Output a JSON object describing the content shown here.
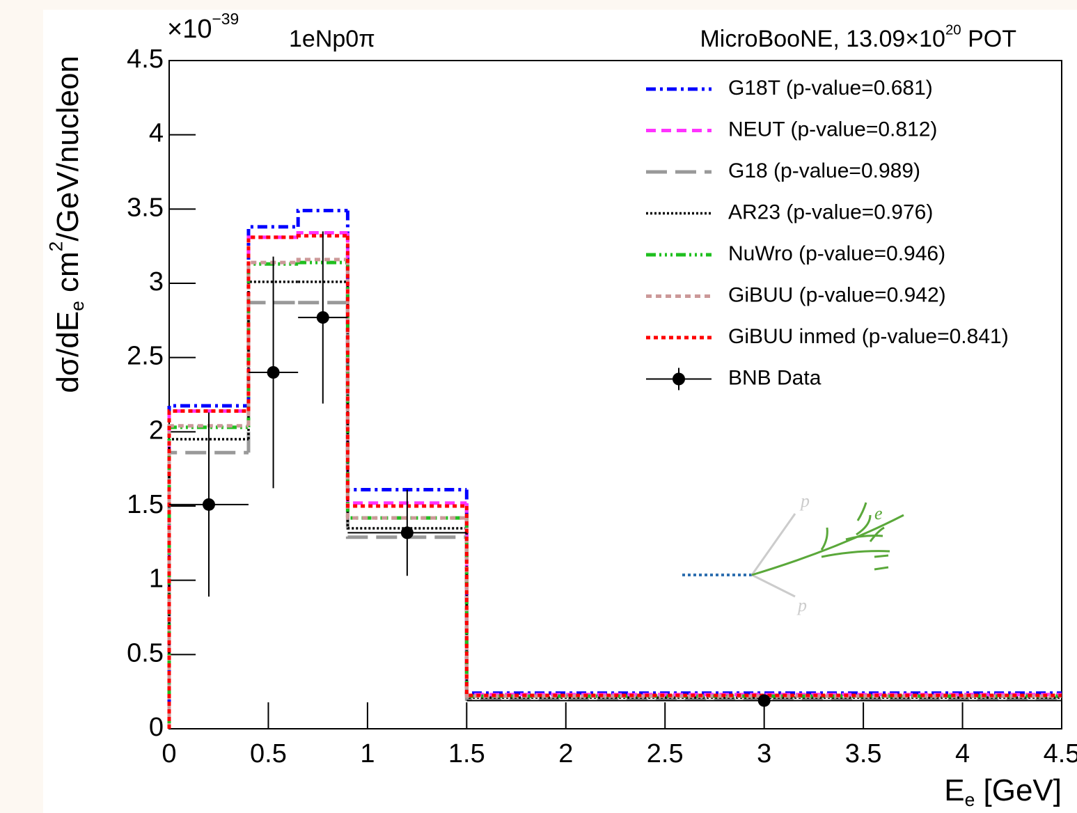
{
  "chart_data": {
    "type": "histogram",
    "title_left": "1eNp0π",
    "title_right": [
      {
        "t": "MicroBooNE, 13.09×10"
      },
      {
        "t": "20",
        "sup": true
      },
      {
        "t": " POT"
      }
    ],
    "y_multiplier": [
      {
        "t": "×10"
      },
      {
        "t": "−39",
        "sup": true
      }
    ],
    "ylabel": [
      {
        "t": "dσ/dE"
      },
      {
        "t": "e",
        "sub": true
      },
      {
        "t": "  cm"
      },
      {
        "t": "2",
        "sup": true
      },
      {
        "t": "/GeV/nucleon"
      }
    ],
    "xlabel": [
      {
        "t": "E"
      },
      {
        "t": "e",
        "sub": true
      },
      {
        "t": " [GeV]"
      }
    ],
    "bins": [
      0,
      0.4,
      0.65,
      0.9,
      1.5,
      4.5
    ],
    "xlim": [
      0,
      4.5
    ],
    "xticks": [
      0,
      0.5,
      1,
      1.5,
      2,
      2.5,
      3,
      3.5,
      4,
      4.5
    ],
    "ylim": [
      0,
      4.5
    ],
    "yticks": [
      0,
      0.5,
      1,
      1.5,
      2,
      2.5,
      3,
      3.5,
      4,
      4.5
    ],
    "series": [
      {
        "name": "G18T (p-value=0.681)",
        "color": "#0000ff",
        "style": "dashdot",
        "values": [
          2.175,
          3.38,
          3.49,
          1.61,
          0.24
        ]
      },
      {
        "name": "NEUT (p-value=0.812)",
        "color": "#ff33ff",
        "style": "dashed",
        "values": [
          2.14,
          3.31,
          3.34,
          1.52,
          0.23
        ]
      },
      {
        "name": "G18 (p-value=0.989)",
        "color": "#999999",
        "style": "longdash",
        "values": [
          1.86,
          2.87,
          2.87,
          1.29,
          0.2
        ]
      },
      {
        "name": "AR23 (p-value=0.976)",
        "color": "#000000",
        "style": "dotted",
        "values": [
          1.95,
          3.01,
          3.01,
          1.35,
          0.21
        ]
      },
      {
        "name": "NuWro (p-value=0.946)",
        "color": "#1fbf1f",
        "style": "dashdotdot",
        "values": [
          2.03,
          3.13,
          3.14,
          1.42,
          0.22
        ]
      },
      {
        "name": "GiBUU (p-value=0.942)",
        "color": "#cc9999",
        "style": "shortdash",
        "values": [
          2.04,
          3.14,
          3.16,
          1.42,
          0.22
        ]
      },
      {
        "name": "GiBUU inmed (p-value=0.841)",
        "color": "#ff0000",
        "style": "densedash",
        "values": [
          2.14,
          3.31,
          3.32,
          1.5,
          0.225
        ]
      }
    ],
    "data": {
      "name": "BNB Data",
      "color": "#000000",
      "x": [
        0.2,
        0.525,
        0.775,
        1.2,
        3.0
      ],
      "xerr": [
        0.2,
        0.125,
        0.125,
        0.3,
        1.5
      ],
      "y": [
        1.51,
        2.4,
        2.77,
        1.32,
        0.19
      ],
      "yerr": [
        0.62,
        0.78,
        0.58,
        0.29,
        0.02
      ]
    },
    "inset_labels": [
      "p",
      "e",
      "p"
    ]
  }
}
